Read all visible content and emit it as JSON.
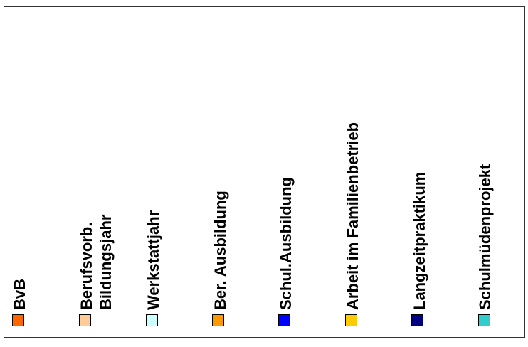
{
  "chart_data": {
    "type": "legend",
    "legend": [
      {
        "label": "BvB",
        "color": "#FF6600"
      },
      {
        "label": "Berufsvorb.\nBildungsjahr",
        "color": "#FFCC99"
      },
      {
        "label": "Werkstattjahr",
        "color": "#CCFFFF"
      },
      {
        "label": "Ber. Ausbildung",
        "color": "#FF9900"
      },
      {
        "label": "Schul.Ausbildung",
        "color": "#0000FF"
      },
      {
        "label": "Arbeit im Familienbetrieb",
        "color": "#FFCC00"
      },
      {
        "label": "Langzeitpraktikum",
        "color": "#000080"
      },
      {
        "label": "Schulmüdenprojekt",
        "color": "#33CCCC"
      }
    ]
  }
}
